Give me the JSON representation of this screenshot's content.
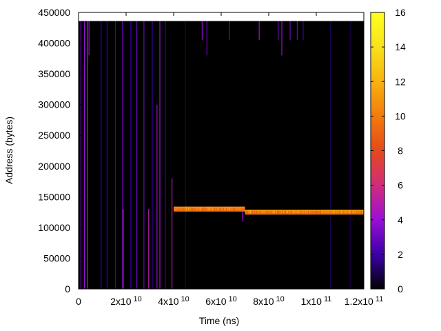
{
  "chart_data": {
    "type": "heatmap",
    "xlabel": "Time (ns)",
    "ylabel": "Address (bytes)",
    "xlim": [
      0,
      120000000000
    ],
    "ylim": [
      0,
      450000
    ],
    "x_ticks": [
      {
        "value": 0,
        "mantissa": "0",
        "exp": ""
      },
      {
        "value": 20000000000,
        "mantissa": "2x10",
        "exp": "10"
      },
      {
        "value": 40000000000,
        "mantissa": "4x10",
        "exp": "10"
      },
      {
        "value": 60000000000,
        "mantissa": "6x10",
        "exp": "10"
      },
      {
        "value": 80000000000,
        "mantissa": "8x10",
        "exp": "10"
      },
      {
        "value": 100000000000,
        "mantissa": "1x10",
        "exp": "11"
      },
      {
        "value": 120000000000,
        "mantissa": "1.2x10",
        "exp": "11"
      }
    ],
    "y_ticks": [
      {
        "value": 0,
        "label": "0"
      },
      {
        "value": 50000,
        "label": "50000"
      },
      {
        "value": 100000,
        "label": "100000"
      },
      {
        "value": 150000,
        "label": "150000"
      },
      {
        "value": 200000,
        "label": "200000"
      },
      {
        "value": 250000,
        "label": "250000"
      },
      {
        "value": 300000,
        "label": "300000"
      },
      {
        "value": 350000,
        "label": "350000"
      },
      {
        "value": 400000,
        "label": "400000"
      },
      {
        "value": 450000,
        "label": "450000"
      }
    ],
    "colorbar": {
      "range": [
        0,
        16
      ],
      "ticks": [
        {
          "value": 0,
          "label": "0"
        },
        {
          "value": 2,
          "label": "2"
        },
        {
          "value": 4,
          "label": "4"
        },
        {
          "value": 6,
          "label": "6"
        },
        {
          "value": 8,
          "label": "8"
        },
        {
          "value": 10,
          "label": "10"
        },
        {
          "value": 12,
          "label": "12"
        },
        {
          "value": 14,
          "label": "14"
        },
        {
          "value": 16,
          "label": "16"
        }
      ],
      "stops": [
        "#000000",
        "#3b00a8",
        "#9a0fd6",
        "#d22c7a",
        "#e34a1c",
        "#f27b0c",
        "#f8b210",
        "#f9e21a",
        "#ffff20"
      ]
    },
    "background": "#000000",
    "occupied_address_range": [
      0,
      436000
    ],
    "hot_bands": [
      {
        "x": [
          40000000000,
          70000000000
        ],
        "y": [
          126000,
          134000
        ],
        "value": 10
      },
      {
        "x": [
          70000000000,
          120000000000
        ],
        "y": [
          121000,
          129000
        ],
        "value": 10
      }
    ],
    "access_spikes": [
      {
        "x": 1000000000,
        "y": [
          0,
          436000
        ],
        "value": 3
      },
      {
        "x": 2500000000,
        "y": [
          0,
          436000
        ],
        "value": 4
      },
      {
        "x": 3800000000,
        "y": [
          0,
          436000
        ],
        "value": 5
      },
      {
        "x": 4400000000,
        "y": [
          380000,
          436000
        ],
        "value": 4
      },
      {
        "x": 9500000000,
        "y": [
          0,
          436000
        ],
        "value": 2
      },
      {
        "x": 12000000000,
        "y": [
          0,
          436000
        ],
        "value": 2
      },
      {
        "x": 15500000000,
        "y": [
          0,
          436000
        ],
        "value": 2
      },
      {
        "x": 18500000000,
        "y": [
          0,
          436000
        ],
        "value": 3
      },
      {
        "x": 18800000000,
        "y": [
          0,
          130000
        ],
        "value": 5
      },
      {
        "x": 22000000000,
        "y": [
          0,
          436000
        ],
        "value": 2
      },
      {
        "x": 24500000000,
        "y": [
          0,
          436000
        ],
        "value": 3
      },
      {
        "x": 27500000000,
        "y": [
          0,
          436000
        ],
        "value": 3
      },
      {
        "x": 29500000000,
        "y": [
          0,
          130000
        ],
        "value": 5
      },
      {
        "x": 31000000000,
        "y": [
          0,
          436000
        ],
        "value": 2
      },
      {
        "x": 33000000000,
        "y": [
          0,
          300000
        ],
        "value": 4
      },
      {
        "x": 34200000000,
        "y": [
          0,
          436000
        ],
        "value": 4
      },
      {
        "x": 36500000000,
        "y": [
          0,
          436000
        ],
        "value": 2
      },
      {
        "x": 39300000000,
        "y": [
          0,
          180000
        ],
        "value": 5
      },
      {
        "x": 45000000000,
        "y": [
          0,
          436000
        ],
        "value": 1
      },
      {
        "x": 52000000000,
        "y": [
          405000,
          436000
        ],
        "value": 4
      },
      {
        "x": 54000000000,
        "y": [
          380000,
          436000
        ],
        "value": 3
      },
      {
        "x": 63500000000,
        "y": [
          405000,
          436000
        ],
        "value": 3
      },
      {
        "x": 69000000000,
        "y": [
          110000,
          130000
        ],
        "value": 4
      },
      {
        "x": 76000000000,
        "y": [
          405000,
          436000
        ],
        "value": 4
      },
      {
        "x": 84000000000,
        "y": [
          405000,
          436000
        ],
        "value": 3
      },
      {
        "x": 85500000000,
        "y": [
          380000,
          436000
        ],
        "value": 4
      },
      {
        "x": 89000000000,
        "y": [
          405000,
          436000
        ],
        "value": 3
      },
      {
        "x": 92000000000,
        "y": [
          405000,
          436000
        ],
        "value": 3
      },
      {
        "x": 94500000000,
        "y": [
          405000,
          436000
        ],
        "value": 2
      },
      {
        "x": 106000000000,
        "y": [
          0,
          436000
        ],
        "value": 1
      },
      {
        "x": 114500000000,
        "y": [
          0,
          436000
        ],
        "value": 1
      }
    ]
  }
}
